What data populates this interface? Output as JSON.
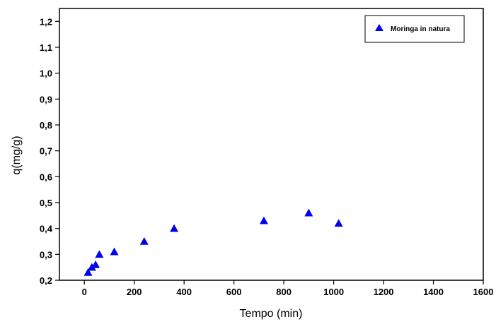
{
  "chart_data": {
    "type": "scatter",
    "xlabel": "Tempo (min)",
    "ylabel": "q(mg/g)",
    "xlim": [
      -100,
      1600
    ],
    "ylim": [
      0.2,
      1.25
    ],
    "x_ticks": [
      0,
      200,
      400,
      600,
      800,
      1000,
      1200,
      1400,
      1600
    ],
    "x_tick_labels": [
      "0",
      "200",
      "400",
      "600",
      "800",
      "1000",
      "1200",
      "1400",
      "1600"
    ],
    "y_ticks": [
      0.2,
      0.3,
      0.4,
      0.5,
      0.6,
      0.7,
      0.8,
      0.9,
      1.0,
      1.1,
      1.2
    ],
    "y_tick_labels": [
      "0,2",
      "0,3",
      "0,4",
      "0,5",
      "0,6",
      "0,7",
      "0,8",
      "0,9",
      "1,0",
      "1,1",
      "1,2"
    ],
    "grid": false,
    "legend_position": "top-right",
    "series": [
      {
        "name": "Moringa in natura",
        "marker": "triangle",
        "color": "#0000ee",
        "points": [
          [
            15,
            0.23
          ],
          [
            30,
            0.25
          ],
          [
            45,
            0.26
          ],
          [
            60,
            0.3
          ],
          [
            120,
            0.31
          ],
          [
            240,
            0.35
          ],
          [
            360,
            0.4
          ],
          [
            720,
            0.43
          ],
          [
            900,
            0.46
          ],
          [
            1020,
            0.42
          ]
        ]
      }
    ]
  }
}
